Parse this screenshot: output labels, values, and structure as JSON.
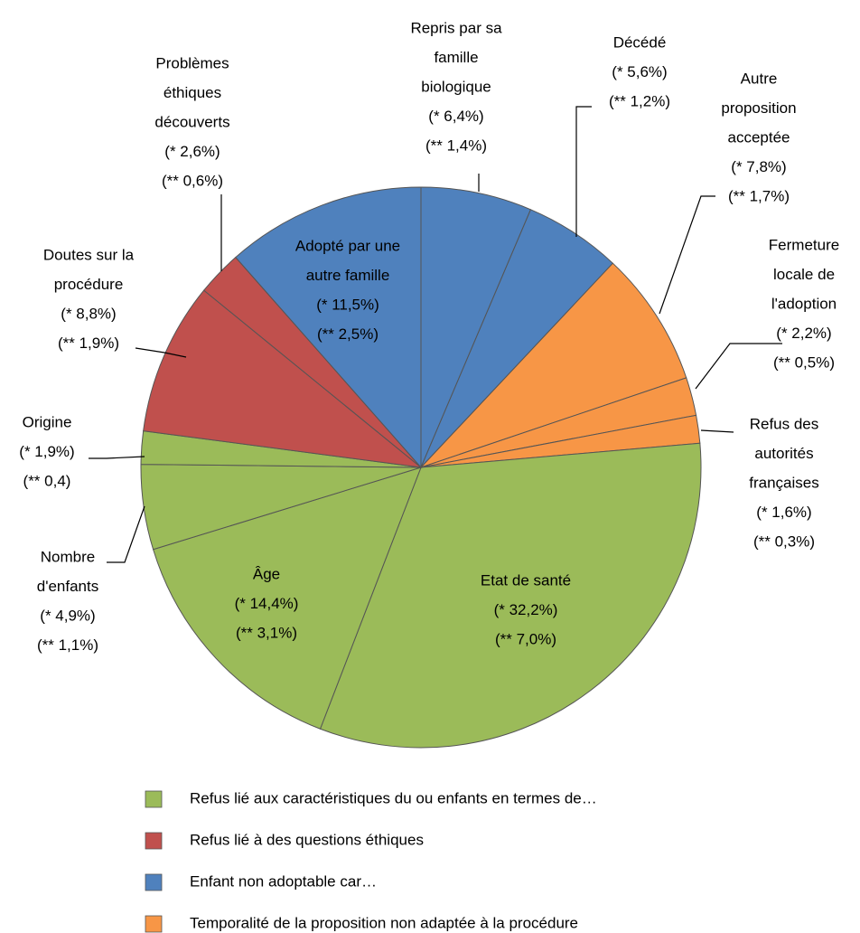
{
  "chart_data": {
    "type": "pie",
    "categories": [
      [
        "Repris par sa",
        "famille",
        "biologique"
      ],
      [
        "Décédé"
      ],
      [
        "Autre",
        "proposition",
        "acceptée"
      ],
      [
        "Fermeture",
        "locale de",
        "l'adoption"
      ],
      [
        "Refus des",
        "autorités",
        "françaises"
      ],
      [
        "Etat de santé"
      ],
      [
        "Âge"
      ],
      [
        "Nombre",
        "d'enfants"
      ],
      [
        "Origine"
      ],
      [
        "Doutes sur la",
        "procédure"
      ],
      [
        "Problèmes",
        "éthiques",
        "découverts"
      ],
      [
        "Adopté  par une",
        "autre famille"
      ]
    ],
    "values": [
      6.4,
      5.6,
      7.8,
      2.2,
      1.6,
      32.2,
      14.4,
      4.9,
      1.9,
      8.8,
      2.6,
      11.5
    ],
    "value_labels": [
      "(* 6,4%)",
      "(* 5,6%)",
      "(* 7,8%)",
      "(* 2,2%)",
      "(* 1,6%)",
      "(* 32,2%)",
      "(* 14,4%)",
      "(* 4,9%)",
      "(* 1,9%)",
      "(* 8,8%)",
      "(* 2,6%)",
      "(* 11,5%)"
    ],
    "secondary_labels": [
      "(** 1,4%)",
      "(** 1,2%)",
      "(** 1,7%)",
      "(** 0,5%)",
      "(** 0,3%)",
      "(** 7,0%)",
      "(** 3,1%)",
      "(** 1,1%)",
      "(** 0,4)",
      "(** 1,9%)",
      "(** 0,6%)",
      "(** 2,5%)"
    ],
    "slice_groups": [
      2,
      2,
      3,
      3,
      3,
      0,
      0,
      0,
      0,
      1,
      1,
      2
    ],
    "groups": [
      {
        "name": "Refus lié aux caractéristiques du ou enfants en termes de…",
        "color": "#9bbb59"
      },
      {
        "name": "Refus lié à des questions éthiques",
        "color": "#c0504d"
      },
      {
        "name": "Enfant non adoptable car…",
        "color": "#4f81bd"
      },
      {
        "name": "Temporalité de la proposition non adaptée à la procédure",
        "color": "#f79646"
      }
    ],
    "legend": "bottom"
  }
}
